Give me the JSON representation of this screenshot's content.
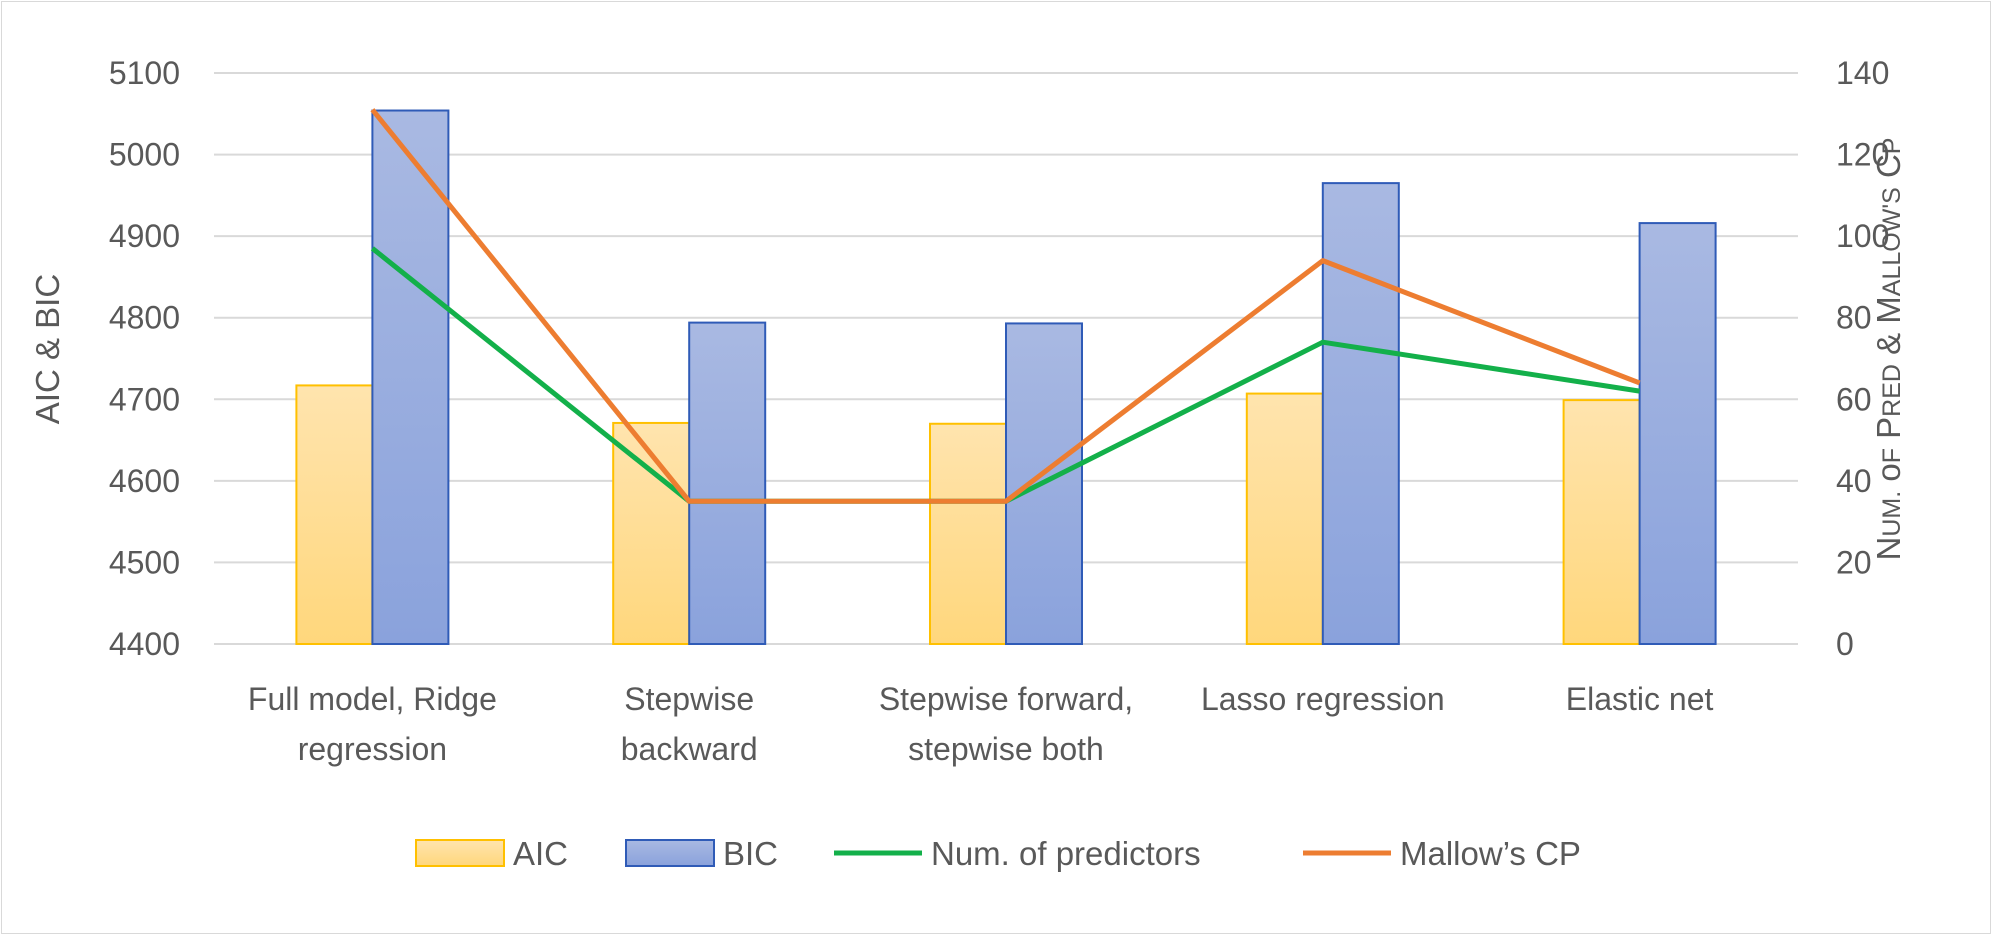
{
  "chart_data": {
    "type": "bar",
    "title": "",
    "categories": [
      [
        "Full model, Ridge",
        "regression"
      ],
      [
        "Stepwise",
        "backward"
      ],
      [
        "Stepwise forward,",
        "stepwise both"
      ],
      [
        "Lasso regression"
      ],
      [
        "Elastic net"
      ]
    ],
    "y_left": {
      "label": "AIC & BIC",
      "range": [
        4400,
        5100
      ],
      "ticks": [
        4400,
        4500,
        4600,
        4700,
        4800,
        4900,
        5000,
        5100
      ]
    },
    "y_right": {
      "label": "Num. of Pred & Mallow's CP",
      "range": [
        0,
        140
      ],
      "ticks": [
        0,
        20,
        40,
        60,
        80,
        100,
        120,
        140
      ]
    },
    "bar_series": [
      {
        "name": "AIC",
        "axis": "left",
        "values": [
          4717,
          4671,
          4670,
          4707,
          4699
        ],
        "fill_top": "#ffe4ae",
        "fill_bottom": "#ffd77c",
        "stroke": "#ffc000"
      },
      {
        "name": "BIC",
        "axis": "left",
        "values": [
          5054,
          4794,
          4793,
          4965,
          4916
        ],
        "fill_top": "#a9b9e2",
        "fill_bottom": "#8aa2dc",
        "stroke": "#2f5bb7"
      }
    ],
    "line_series": [
      {
        "name": "Num. of predictors",
        "axis": "right",
        "values": [
          97,
          35,
          35,
          74,
          62
        ],
        "color": "#13b04a"
      },
      {
        "name": "Mallow’s CP",
        "axis": "right",
        "values": [
          131,
          35,
          35,
          94,
          64
        ],
        "color": "#ed7d31"
      }
    ],
    "grid": true,
    "legend_position": "bottom"
  }
}
